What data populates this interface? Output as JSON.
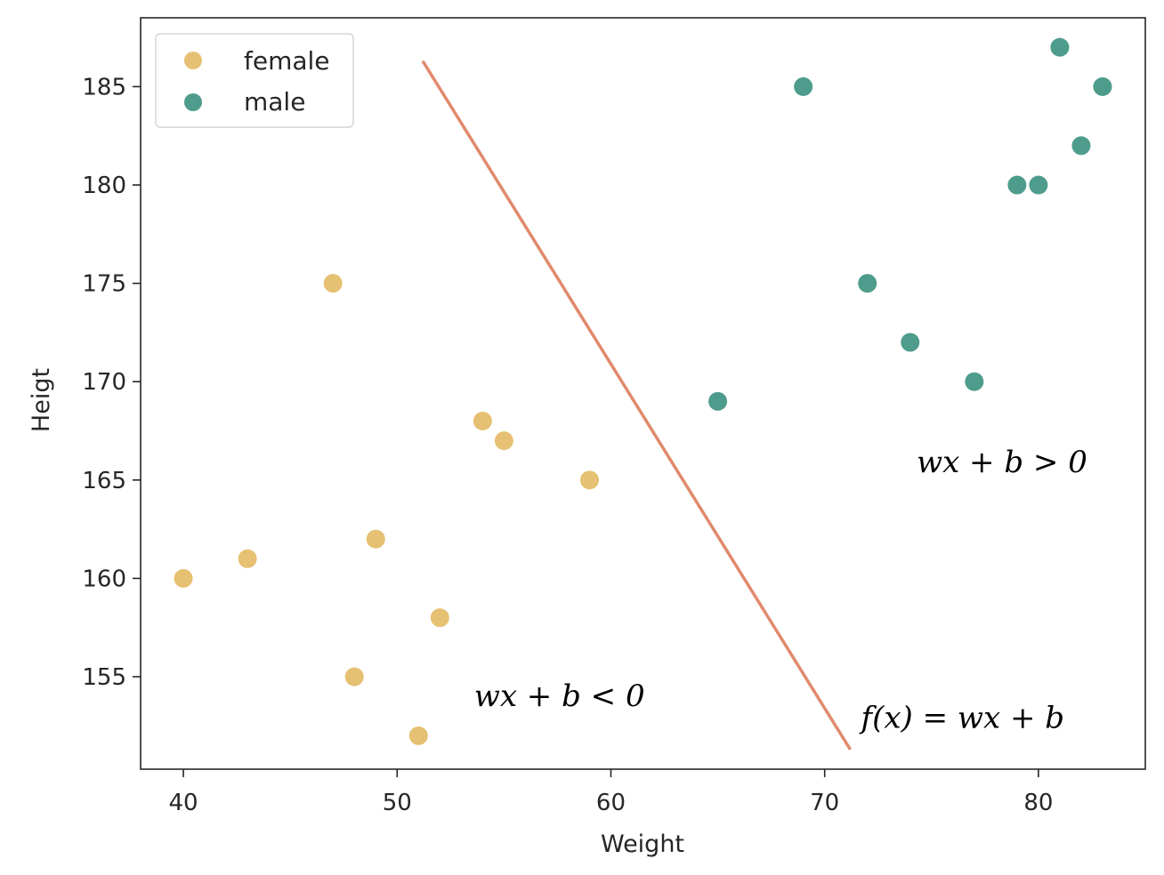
{
  "chart_data": {
    "type": "scatter",
    "xlabel": "Weight",
    "ylabel": "Heigt",
    "xlim": [
      38,
      85
    ],
    "ylim": [
      150.3,
      188.5
    ],
    "x_ticks": [
      40,
      50,
      60,
      70,
      80
    ],
    "y_ticks": [
      155,
      160,
      165,
      170,
      175,
      180,
      185
    ],
    "grid": false,
    "legend_placement": "top-left",
    "series": [
      {
        "name": "female",
        "color": "#e6c073",
        "points": [
          {
            "x": 47,
            "y": 175
          },
          {
            "x": 54,
            "y": 168
          },
          {
            "x": 55,
            "y": 167
          },
          {
            "x": 59,
            "y": 165
          },
          {
            "x": 49,
            "y": 162
          },
          {
            "x": 43,
            "y": 161
          },
          {
            "x": 40,
            "y": 160
          },
          {
            "x": 52,
            "y": 158
          },
          {
            "x": 48,
            "y": 155
          },
          {
            "x": 51,
            "y": 152
          }
        ]
      },
      {
        "name": "male",
        "color": "#4e9c8c",
        "points": [
          {
            "x": 81,
            "y": 187
          },
          {
            "x": 69,
            "y": 185
          },
          {
            "x": 83,
            "y": 185
          },
          {
            "x": 82,
            "y": 182
          },
          {
            "x": 79,
            "y": 180
          },
          {
            "x": 80,
            "y": 180
          },
          {
            "x": 72,
            "y": 175
          },
          {
            "x": 74,
            "y": 172
          },
          {
            "x": 77,
            "y": 170
          },
          {
            "x": 65,
            "y": 169
          }
        ]
      }
    ],
    "decision_line": {
      "color": "#e08a6c",
      "points": [
        {
          "x": 51.2,
          "y": 186.3
        },
        {
          "x": 71.2,
          "y": 151.3
        }
      ]
    },
    "annotations": [
      {
        "text": "wx + b > 0",
        "x": 74.3,
        "y": 165.4
      },
      {
        "text": "wx + b < 0",
        "x": 53.6,
        "y": 153.5
      },
      {
        "text": "f(x) = wx + b",
        "x": 71.7,
        "y": 152.4
      }
    ]
  }
}
